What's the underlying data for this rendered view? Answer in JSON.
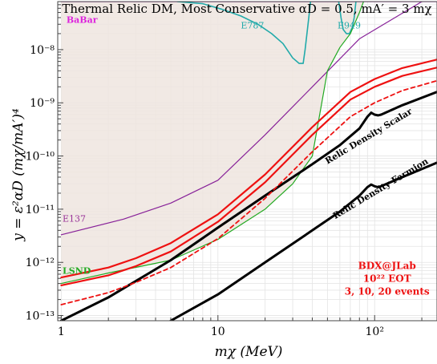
{
  "chart_data": {
    "type": "line",
    "title": "Thermal Relic DM, Most Conservative  αD = 0.5,  mA′ = 3 mχ",
    "xlabel": "mχ (MeV)",
    "ylabel": "y = ε²αD (mχ/mA′)⁴",
    "xscale": "log",
    "yscale": "log",
    "xlim": [
      0.95,
      250
    ],
    "ylim": [
      8e-14,
      8e-08
    ],
    "x_ticks": [
      {
        "value": 1,
        "label": "1"
      },
      {
        "value": 10,
        "label": "10"
      },
      {
        "value": 100,
        "label": "10²"
      }
    ],
    "y_ticks": [
      {
        "value": 1e-13,
        "label": "10⁻¹³"
      },
      {
        "value": 1e-12,
        "label": "10⁻¹²"
      },
      {
        "value": 1e-11,
        "label": "10⁻¹¹"
      },
      {
        "value": 1e-10,
        "label": "10⁻¹⁰"
      },
      {
        "value": 1e-09,
        "label": "10⁻⁹"
      },
      {
        "value": 1e-08,
        "label": "10⁻⁸"
      }
    ],
    "grid": true,
    "excluded_region": {
      "color": "#efe5df",
      "x": [
        1,
        5,
        10,
        20,
        30,
        40,
        50,
        60,
        70,
        80,
        85,
        250
      ],
      "y": [
        4e-13,
        1.1e-12,
        2.7e-12,
        1e-11,
        3e-11,
        1e-10,
        4e-09,
        1.1e-08,
        2e-08,
        5e-08,
        8e-08,
        8e-08
      ]
    },
    "series": [
      {
        "name": "BaBar",
        "color": "#dd22dd",
        "width": 1.3,
        "dash": "",
        "x": [
          1,
          250
        ],
        "y": [
          8e-08,
          8e-08
        ]
      },
      {
        "name": "E787",
        "color": "#22aaaa",
        "width": 1.6,
        "dash": "",
        "x": [
          5.5,
          8,
          10.5,
          14,
          18,
          22,
          26,
          30,
          33,
          35,
          36,
          38,
          39
        ],
        "y": [
          8e-08,
          7.3e-08,
          5.8e-08,
          4.3e-08,
          3e-08,
          2e-08,
          1.3e-08,
          7e-09,
          5.5e-09,
          5.5e-09,
          1e-08,
          4e-08,
          8e-08
        ]
      },
      {
        "name": "E949",
        "color": "#22aaaa",
        "width": 1.6,
        "dash": "",
        "x": [
          59,
          61,
          63,
          66,
          69,
          72,
          74,
          76
        ],
        "y": [
          8e-08,
          4e-08,
          2.4e-08,
          2e-08,
          2e-08,
          2.6e-08,
          4e-08,
          8e-08
        ]
      },
      {
        "name": "E137",
        "color": "#882299",
        "width": 1.2,
        "dash": "",
        "x": [
          1,
          2.5,
          5,
          10,
          20,
          40,
          80,
          200
        ],
        "y": [
          3.3e-12,
          6.5e-12,
          1.3e-11,
          3.5e-11,
          2.5e-10,
          2e-09,
          1.6e-08,
          8e-08
        ]
      },
      {
        "name": "LSND",
        "color": "#22aa22",
        "width": 1.2,
        "dash": "",
        "x": [
          1,
          2,
          5,
          10,
          20,
          30,
          40,
          50,
          60,
          70,
          80,
          85
        ],
        "y": [
          4e-13,
          6.3e-13,
          1.1e-12,
          2.7e-12,
          1e-11,
          3e-11,
          1e-10,
          4e-09,
          1.1e-08,
          2e-08,
          5e-08,
          8e-08
        ]
      },
      {
        "name": "Relic Density Scalar",
        "color": "#000000",
        "width": 3.0,
        "dash": "",
        "x": [
          1,
          2,
          5,
          10,
          20,
          40,
          60,
          80,
          90,
          95,
          100,
          105,
          110,
          150,
          250
        ],
        "y": [
          8e-14,
          2.2e-13,
          1.1e-12,
          4.5e-12,
          1.8e-11,
          7e-11,
          1.6e-10,
          3.3e-10,
          5.5e-10,
          6.5e-10,
          6e-10,
          5.8e-10,
          6e-10,
          9e-10,
          1.6e-09
        ]
      },
      {
        "name": "Relic Density Fermion",
        "color": "#000000",
        "width": 3.0,
        "dash": "",
        "x": [
          5,
          10,
          20,
          40,
          60,
          80,
          90,
          95,
          100,
          105,
          110,
          150,
          250
        ],
        "y": [
          8e-14,
          2.5e-13,
          1e-12,
          4e-12,
          9e-12,
          1.8e-11,
          2.6e-11,
          2.9e-11,
          2.7e-11,
          2.6e-11,
          2.7e-11,
          4e-11,
          7.5e-11
        ]
      },
      {
        "name": "BDX 20 events",
        "color": "#ee1111",
        "width": 2.2,
        "dash": "",
        "x": [
          1,
          2,
          3,
          5,
          10,
          20,
          40,
          70,
          100,
          150,
          250
        ],
        "y": [
          5.2e-13,
          8e-13,
          1.2e-12,
          2.3e-12,
          8e-12,
          4.5e-11,
          3.5e-10,
          1.6e-09,
          2.8e-09,
          4.5e-09,
          6.5e-09
        ]
      },
      {
        "name": "BDX 10 events",
        "color": "#ee1111",
        "width": 2.2,
        "dash": "",
        "x": [
          1,
          2,
          3,
          5,
          10,
          20,
          40,
          70,
          100,
          150,
          250
        ],
        "y": [
          3.7e-13,
          5.7e-13,
          8.5e-13,
          1.6e-12,
          5.8e-12,
          3.2e-11,
          2.5e-10,
          1.15e-09,
          2e-09,
          3.2e-09,
          4.6e-09
        ]
      },
      {
        "name": "BDX 3 events",
        "color": "#ee1111",
        "width": 1.8,
        "dash": "5,4",
        "x": [
          1,
          2,
          3,
          5,
          10,
          20,
          40,
          70,
          100,
          150,
          250
        ],
        "y": [
          1.6e-13,
          2.7e-13,
          4.2e-13,
          8e-13,
          2.8e-12,
          1.6e-11,
          1.2e-10,
          5.5e-10,
          1e-09,
          1.7e-09,
          2.6e-09
        ]
      }
    ],
    "annotations": [
      {
        "text": "BaBar",
        "x": 1.08,
        "y": 3.2e-08,
        "color": "#dd22dd",
        "bold": true,
        "size": 11,
        "rotate": 0
      },
      {
        "text": "E787",
        "x": 14,
        "y": 2.5e-08,
        "color": "#22aaaa",
        "bold": false,
        "size": 11,
        "rotate": 0
      },
      {
        "text": "E949",
        "x": 58,
        "y": 2.5e-08,
        "color": "#22aaaa",
        "bold": false,
        "size": 11,
        "rotate": 0
      },
      {
        "text": "E137",
        "x": 1.02,
        "y": 5.8e-12,
        "color": "#993399",
        "bold": false,
        "size": 11,
        "rotate": 0
      },
      {
        "text": "LSND",
        "x": 1.02,
        "y": 6.1e-13,
        "color": "#22aa22",
        "bold": true,
        "size": 11,
        "rotate": 0
      },
      {
        "text": "Relic Density Scalar",
        "x": 50,
        "y": 7e-11,
        "color": "#000000",
        "bold": true,
        "size": 11,
        "rotate": -31
      },
      {
        "text": "Relic Density Fermion",
        "x": 56,
        "y": 6.5e-12,
        "color": "#000000",
        "bold": true,
        "size": 11,
        "rotate": -31
      }
    ],
    "bdx_label": {
      "lines": [
        "BDX@JLab",
        "10²² EOT",
        "3, 10, 20 events"
      ],
      "color": "#ee1111",
      "x": 120,
      "y": 7.5e-13
    }
  }
}
